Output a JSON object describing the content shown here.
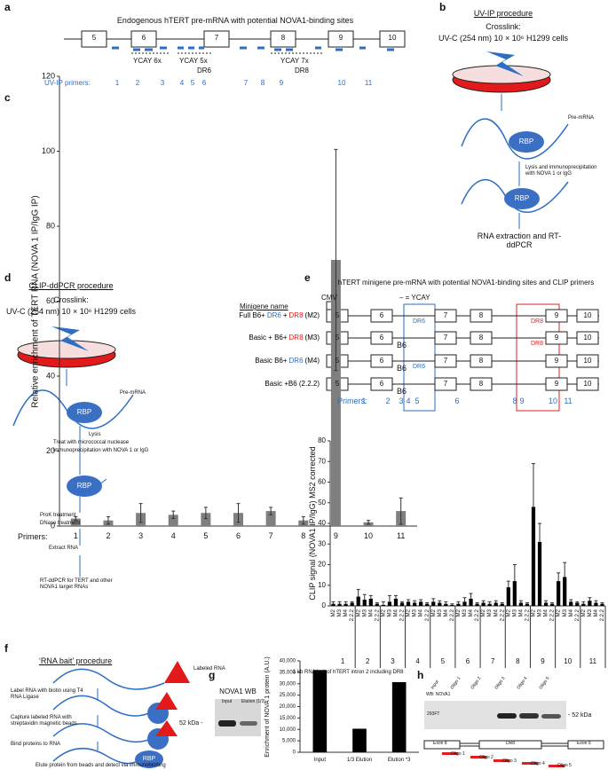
{
  "panels": {
    "a": {
      "label": "a",
      "title": "Endogenous hTERT pre-mRNA with potential NOVA1-binding sites",
      "exons": [
        "5",
        "6",
        "7",
        "8",
        "9",
        "10"
      ],
      "ycay_6": "YCAY 6x",
      "ycay_5": "YCAY 5x",
      "dr6": "DR6",
      "ycay_7": "YCAY 7x",
      "dr8": "DR8",
      "primers_label": "UV-IP primers:",
      "primers": [
        "1",
        "2",
        "3",
        "4",
        "5",
        "6",
        "7",
        "8",
        "9",
        "10",
        "11"
      ]
    },
    "b": {
      "label": "b",
      "title": "UV-IP procedure",
      "crosslink": "Crosslink:",
      "uv": "UV-C (254 nm) 10 × 10⁶ H1299 cells",
      "pre_mrna": "Pre-mRNA",
      "rbp_1": "RBP",
      "step_1": "Lysis and immunoprecipitation with NOVA 1 or IgG",
      "rbp_2": "RBP",
      "step_2": "RNA extraction and RT-ddPCR"
    },
    "d": {
      "label": "d",
      "title": "CLIP-ddPCR procedure",
      "crosslink": "Crosslink:",
      "uv": "UV-C (254 nm) 10 × 10⁶ H1299 cells",
      "pre_mrna": "Pre-mRNA",
      "rbp_1": "RBP",
      "step_1": [
        "Lysis",
        "Treat with micrococcal nuclease",
        "immunoprecipitation with NOVA 1 or IgG"
      ],
      "rbp_2": "RBP",
      "step_2": [
        "ProK treatment",
        "DNase treatment"
      ],
      "step_3": "Extract RNA",
      "step_4": "RT-ddPCR for TERT and other NOVA1 target RNAs"
    },
    "e": {
      "label": "e",
      "title": "hTERT minigene pre-mRNA with potential NOVA1-binding sites and CLIP primers",
      "cmv": "CMV",
      "legend": "– = YCAY",
      "name_header": "Minigene name",
      "rows": [
        {
          "name": [
            {
              "text": "Full B6+",
              "color": "#000000"
            },
            {
              "text": "DR6",
              "color": "#2e6dc4"
            },
            {
              "text": "+",
              "color": "#000000"
            },
            {
              "text": "DR8",
              "color": "#e02020"
            },
            {
              "text": "(M2)",
              "color": "#000000"
            }
          ],
          "exons": [
            "5",
            "6",
            "7",
            "8",
            "9",
            "10"
          ],
          "labels": {
            "dr6": "DR6",
            "dr8": "DR8"
          }
        },
        {
          "name": [
            {
              "text": "Basic + B6+",
              "color": "#000000"
            },
            {
              "text": "DR8",
              "color": "#e02020"
            },
            {
              "text": "(M3)",
              "color": "#000000"
            }
          ],
          "exons": [
            "5",
            "6",
            "7",
            "8",
            "9",
            "10"
          ],
          "labels": {
            "b6": "B6",
            "dr8": "DR8"
          }
        },
        {
          "name": [
            {
              "text": "Basic B6+",
              "color": "#000000"
            },
            {
              "text": "DR6",
              "color": "#2e6dc4"
            },
            {
              "text": "(M4)",
              "color": "#000000"
            }
          ],
          "exons": [
            "5",
            "6",
            "7",
            "8",
            "9",
            "10"
          ],
          "labels": {
            "b6": "B6",
            "dr6": "DR6"
          }
        },
        {
          "name": [
            {
              "text": "Basic +B6 (2.2.2)",
              "color": "#000000"
            }
          ],
          "exons": [
            "5",
            "6",
            "7",
            "8",
            "9",
            "10"
          ],
          "labels": {
            "b6": "B6"
          }
        }
      ],
      "primers_label": "Primers:",
      "primers": [
        "1",
        "2",
        "3",
        "4",
        "5",
        "6",
        "8",
        "9",
        "10",
        "11"
      ]
    },
    "f": {
      "label": "f",
      "title": "‘RNA bait’ procedure",
      "labeled_rna": "Labeled RNA",
      "steps": [
        "Label RNA with biotin using T4 RNA Ligase",
        "Capture labeled RNA with streptavidin magnetic beads",
        "Bind proteins to RNA",
        "Elute protein from beads and detect via immunoblotting"
      ],
      "rbp": "RBP"
    },
    "g": {
      "label": "g",
      "title": "1 kb RNA bait of hTERT intron 2 including DR8",
      "blot_title": "NOVA1 WB",
      "lanes": [
        "Input",
        "Elution (1/3)"
      ],
      "marker": "52 kDa -"
    },
    "h": {
      "label": "h",
      "wb": "WB: NOVA1",
      "lanes": [
        "Input",
        "Oligo 1",
        "Oligo 2",
        "Oligo 3",
        "Oligo 4",
        "Oligo 5"
      ],
      "cell": "293FT",
      "marker": "- 52 kDa",
      "exon_8": "Exon 8",
      "dr8": "DR8",
      "exon_9": "Exon 9",
      "oligos": [
        "Oligo 1",
        "Oligo 2",
        "Oligo 3",
        "Oligo 4",
        "Oligo 5"
      ]
    }
  },
  "chart_data": [
    {
      "type": "bar",
      "panel": "c",
      "y_label": "Relative enrichment of TERT RNA (NOVA 1 IP/IgG IP)",
      "x_label": "Primers:",
      "categories": [
        "1",
        "2",
        "3",
        "4",
        "5",
        "6",
        "7",
        "8",
        "9",
        "10",
        "11"
      ],
      "values": [
        2,
        1.5,
        3.5,
        3,
        3.5,
        3.5,
        4,
        1.5,
        71,
        1,
        4
      ],
      "errors": [
        0.5,
        1,
        2.5,
        1,
        1.5,
        2.5,
        1,
        1,
        29.5,
        0.5,
        3.5
      ],
      "color": "#7f7f7f",
      "ylim": [
        0,
        120
      ],
      "yticks": [
        0,
        20,
        40,
        60,
        80,
        100,
        120
      ]
    },
    {
      "type": "bar",
      "y_label": "CLIP signal (NOVA1 IP/IgG) MS2 corrected",
      "categories": [
        "1",
        "2",
        "3",
        "4",
        "5",
        "6",
        "7",
        "8",
        "9",
        "10",
        "11"
      ],
      "series": [
        {
          "name": "M2",
          "color": "#000000",
          "values": [
            1,
            4.5,
            0.5,
            2,
            2,
            1,
            1.5,
            9,
            48,
            12,
            1
          ],
          "errors": [
            1,
            3.5,
            1.5,
            1,
            1.5,
            1,
            1,
            3,
            21,
            4,
            1
          ]
        },
        {
          "name": "M3",
          "color": "#000000",
          "values": [
            1,
            3,
            2,
            1.5,
            1.5,
            2,
            1,
            12,
            31,
            14,
            2.5
          ],
          "errors": [
            1,
            2.5,
            3,
            1,
            1,
            2,
            1,
            8,
            9,
            7,
            1.5
          ]
        },
        {
          "name": "M4",
          "color": "#000000",
          "values": [
            1,
            3.5,
            3.5,
            2,
            1,
            3.5,
            1.5,
            1.5,
            1.5,
            2,
            1.5
          ],
          "errors": [
            1,
            1.5,
            1.5,
            1,
            1,
            2.5,
            1,
            1,
            1,
            1,
            1
          ]
        },
        {
          "name": "2.2.2",
          "color": "#000000",
          "values": [
            1.5,
            1,
            1.5,
            1,
            0.5,
            1,
            1,
            1,
            1,
            1.5,
            1
          ],
          "errors": [
            0.5,
            0.5,
            0.5,
            0.5,
            0.5,
            0.5,
            0.5,
            0.5,
            0.5,
            0.5,
            0.5
          ]
        }
      ],
      "ylim": [
        0,
        80
      ],
      "yticks": [
        0,
        10,
        20,
        30,
        40,
        50,
        60,
        70,
        80
      ]
    },
    {
      "type": "bar",
      "y_label": "Enrichment of NOVA 1 protein (A.U.)",
      "categories": [
        "Input",
        "1/3 Elution",
        "Elution *3"
      ],
      "values": [
        36000,
        10300,
        30700
      ],
      "color": "#000000",
      "ylim": [
        0,
        40000
      ],
      "yticks": [
        0,
        {
          "value": 5000,
          "label": "5,000"
        },
        {
          "value": 10000,
          "label": "10,000"
        },
        {
          "value": 15000,
          "label": "15,000"
        },
        {
          "value": 20000,
          "label": "20,000"
        },
        {
          "value": 25000,
          "label": "25,000"
        },
        {
          "value": 30000,
          "label": "30,000"
        },
        {
          "value": 35000,
          "label": "35,000"
        },
        {
          "value": 40000,
          "label": "40,000"
        }
      ]
    }
  ]
}
